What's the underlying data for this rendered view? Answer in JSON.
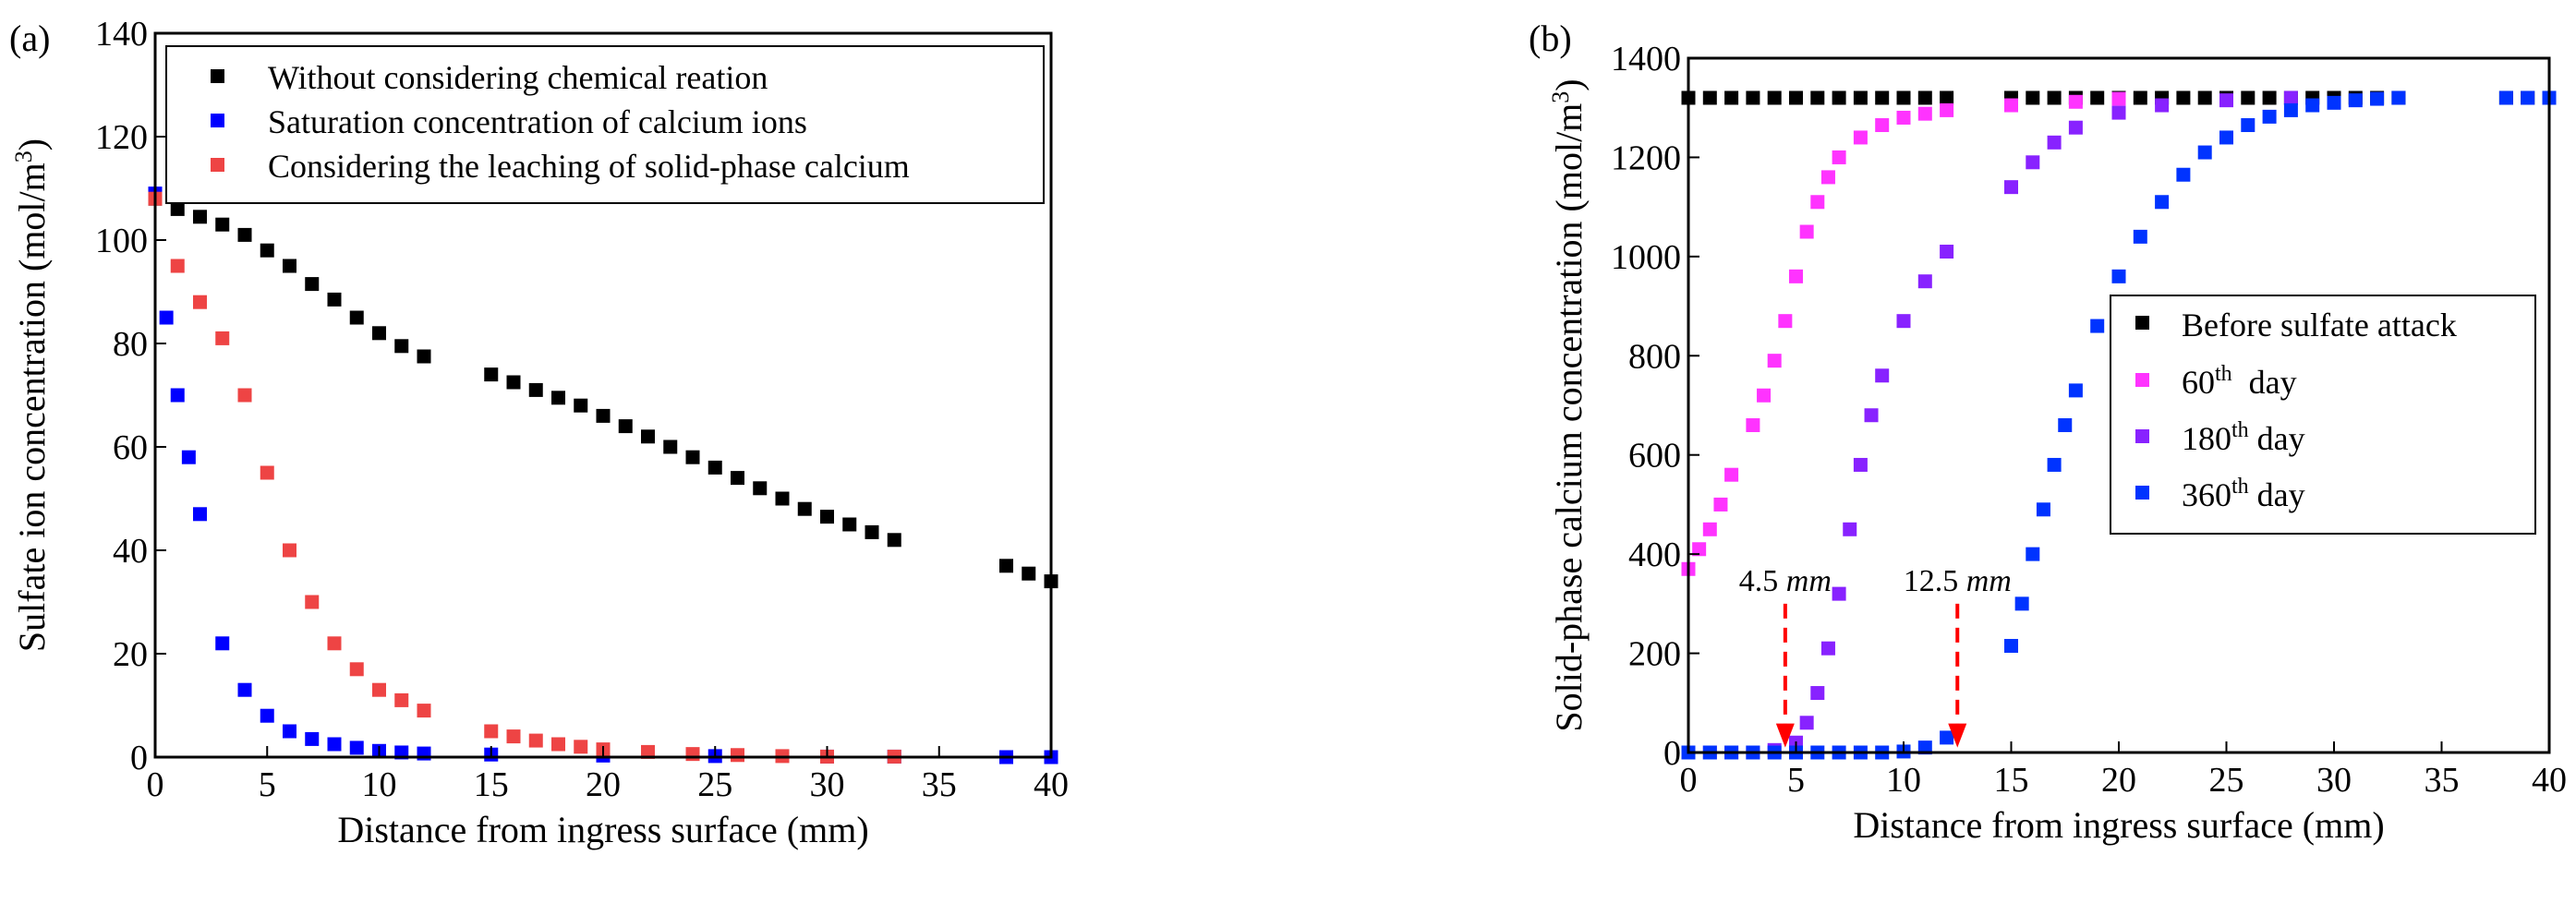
{
  "chart_data": [
    {
      "type": "scatter",
      "panel_label": "(a)",
      "xlabel": "Distance from ingress surface (mm)",
      "ylabel": "Sulfate ion concentration (mol/m³)",
      "ylabel_base": "Sulfate ion concentration (mol/m",
      "ylabel_sup": "3",
      "ylabel_close": ")",
      "xlim": [
        0,
        40
      ],
      "ylim": [
        0,
        140
      ],
      "xticks": [
        0,
        5,
        10,
        15,
        20,
        25,
        30,
        35,
        40
      ],
      "yticks": [
        0,
        20,
        40,
        60,
        80,
        100,
        120,
        140
      ],
      "grid": false,
      "legend_position": "top-right",
      "series": [
        {
          "name": "Without considering chemical reation",
          "color": "#000000",
          "x": [
            0,
            1,
            2,
            3,
            4,
            5,
            6,
            7,
            8,
            9,
            10,
            11,
            12,
            15,
            16,
            17,
            18,
            19,
            20,
            21,
            22,
            23,
            24,
            25,
            26,
            27,
            28,
            29,
            30,
            31,
            32,
            33,
            38,
            39,
            40
          ],
          "y": [
            108,
            106,
            104.5,
            103,
            101,
            98,
            95,
            91.5,
            88.5,
            85,
            82,
            79.5,
            77.5,
            74,
            72.5,
            71,
            69.5,
            68,
            66,
            64,
            62,
            60,
            58,
            56,
            54,
            52,
            50,
            48,
            46.5,
            45,
            43.5,
            42,
            37,
            35.5,
            34
          ]
        },
        {
          "name": "Saturation concentration of calcium ions",
          "color": "#0000FF",
          "x": [
            0,
            0.5,
            1,
            1.5,
            2,
            3,
            4,
            5,
            6,
            7,
            8,
            9,
            10,
            11,
            12,
            15,
            20,
            25,
            30,
            33,
            38,
            40
          ],
          "y": [
            109,
            85,
            70,
            58,
            47,
            22,
            13,
            8,
            5,
            3.5,
            2.5,
            1.8,
            1.2,
            0.9,
            0.7,
            0.5,
            0.3,
            0.2,
            0.1,
            0.1,
            0,
            0
          ]
        },
        {
          "name": "Considering the leaching of solid-phase calcium",
          "color": "#EE4444",
          "x": [
            0,
            1,
            2,
            3,
            4,
            5,
            6,
            7,
            8,
            9,
            10,
            11,
            12,
            15,
            16,
            17,
            18,
            19,
            20,
            22,
            24,
            26,
            28,
            30,
            33
          ],
          "y": [
            108,
            95,
            88,
            81,
            70,
            55,
            40,
            30,
            22,
            17,
            13,
            11,
            9,
            5,
            4,
            3.2,
            2.5,
            2,
            1.5,
            1,
            0.6,
            0.4,
            0.2,
            0.1,
            0.1
          ]
        }
      ]
    },
    {
      "type": "scatter",
      "panel_label": "(b)",
      "xlabel": "Distance from ingress surface (mm)",
      "ylabel": "Solid-phase calcium concentration (mol/m³)",
      "ylabel_base": "Solid-phase calcium concentration (mol/m",
      "ylabel_sup": "3",
      "ylabel_close": ")",
      "xlim": [
        0,
        40
      ],
      "ylim": [
        0,
        1400
      ],
      "xticks": [
        0,
        5,
        10,
        15,
        20,
        25,
        30,
        35,
        40
      ],
      "yticks": [
        0,
        200,
        400,
        600,
        800,
        1000,
        1200,
        1400
      ],
      "grid": false,
      "legend_position": "center-right",
      "annotations": [
        {
          "text": "4.5 ",
          "italic": "mm",
          "x": 4.5,
          "y_top": 300,
          "y_tip": 10
        },
        {
          "text": "12.5 ",
          "italic": "mm",
          "x": 12.5,
          "y_top": 300,
          "y_tip": 10
        }
      ],
      "series": [
        {
          "name": "Before sulfate attack",
          "legend_base": "Before sulfate attack",
          "legend_sup": "",
          "legend_after": "",
          "color": "#000000",
          "x": [
            0,
            1,
            2,
            3,
            4,
            5,
            6,
            7,
            8,
            9,
            10,
            11,
            12,
            15,
            16,
            17,
            18,
            19,
            20,
            21,
            22,
            23,
            24,
            25,
            26,
            27,
            28,
            29,
            30,
            31,
            32,
            33,
            38,
            39,
            40
          ],
          "y": [
            1320,
            1320,
            1320,
            1320,
            1320,
            1320,
            1320,
            1320,
            1320,
            1320,
            1320,
            1320,
            1320,
            1320,
            1320,
            1320,
            1320,
            1320,
            1320,
            1320,
            1320,
            1320,
            1320,
            1320,
            1320,
            1320,
            1320,
            1320,
            1320,
            1320,
            1320,
            1320,
            1320,
            1320,
            1320
          ]
        },
        {
          "name": "60th day",
          "legend_base": "60",
          "legend_sup": "th",
          "legend_after": "  day",
          "color": "#FF33FF",
          "x": [
            0,
            0.5,
            1,
            1.5,
            2,
            3,
            3.5,
            4,
            4.5,
            5,
            5.5,
            6,
            6.5,
            7,
            8,
            9,
            10,
            11,
            12,
            15,
            18,
            20
          ],
          "y": [
            370,
            410,
            450,
            500,
            560,
            660,
            720,
            790,
            870,
            960,
            1050,
            1110,
            1160,
            1200,
            1240,
            1265,
            1280,
            1288,
            1295,
            1305,
            1312,
            1318
          ]
        },
        {
          "name": "180th day",
          "legend_base": "180",
          "legend_sup": "th",
          "legend_after": " day",
          "color": "#8822FF",
          "x": [
            0,
            1,
            2,
            3,
            4,
            5,
            5.5,
            6,
            6.5,
            7,
            7.5,
            8,
            8.5,
            9,
            10,
            11,
            12,
            15,
            16,
            17,
            18,
            20,
            22,
            25,
            28
          ],
          "y": [
            0,
            0,
            0,
            0,
            5,
            20,
            60,
            120,
            210,
            320,
            450,
            580,
            680,
            760,
            870,
            950,
            1010,
            1140,
            1190,
            1230,
            1260,
            1290,
            1305,
            1315,
            1320
          ]
        },
        {
          "name": "360th day",
          "legend_base": "360",
          "legend_sup": "th",
          "legend_after": " day",
          "color": "#0033FF",
          "x": [
            0,
            1,
            2,
            3,
            4,
            5,
            6,
            7,
            8,
            9,
            10,
            11,
            12,
            15,
            15.5,
            16,
            16.5,
            17,
            17.5,
            18,
            19,
            20,
            21,
            22,
            23,
            24,
            25,
            26,
            27,
            28,
            29,
            30,
            31,
            32,
            33,
            38,
            39,
            40
          ],
          "y": [
            0,
            0,
            0,
            0,
            0,
            0,
            0,
            0,
            0,
            0,
            2,
            10,
            30,
            215,
            300,
            400,
            490,
            580,
            660,
            730,
            860,
            960,
            1040,
            1110,
            1165,
            1210,
            1240,
            1265,
            1282,
            1295,
            1305,
            1310,
            1315,
            1318,
            1320,
            1320,
            1320,
            1320
          ]
        }
      ]
    }
  ]
}
